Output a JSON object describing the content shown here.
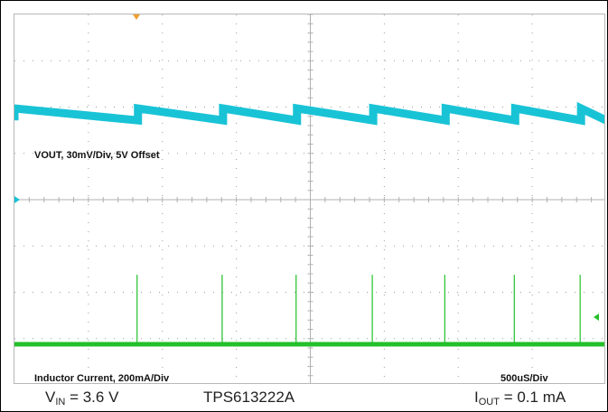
{
  "chart_data": {
    "type": "line",
    "title": "",
    "grid": true,
    "time_per_div": "500uS/Div",
    "x_divisions": 8,
    "y_divisions": 8,
    "series": [
      {
        "name": "VOUT, 30mV/Div, 5V Offset",
        "color": "#19c3d6",
        "unit": "mV relative to 5 V offset",
        "ripple_peak_to_peak_mV": 27,
        "step_times_div": [
          0.0,
          1.67,
          2.82,
          3.82,
          4.85,
          5.83,
          6.77,
          7.66
        ],
        "level_at_step_start_div": 1.3,
        "level_before_step_div": 0.4
      },
      {
        "name": "Inductor Current, 200mA/Div",
        "color": "#22c02a",
        "unit": "mA",
        "baseline_mA": 0,
        "pulse_times_div": [
          0.0,
          1.67,
          2.82,
          3.82,
          4.85,
          5.83,
          6.77,
          7.66
        ],
        "pulse_peak_mA": 300
      }
    ]
  },
  "labels": {
    "ch1": "VOUT, 30mV/Div, 5V Offset",
    "ch2": "Inductor Current, 200mA/Div",
    "timebase": "500uS/Div"
  },
  "caption": {
    "vin_symbol": "V",
    "vin_sub": "IN",
    "vin_value": " = 3.6 V",
    "part": "TPS613222A",
    "iout_symbol": "I",
    "iout_sub": "OUT",
    "iout_value": " = 0.1 mA"
  },
  "colors": {
    "grid": "#9a9a9a",
    "trigger_marker": "#f0a030",
    "ch1": "#19c3d6",
    "ch2": "#22c02a"
  }
}
